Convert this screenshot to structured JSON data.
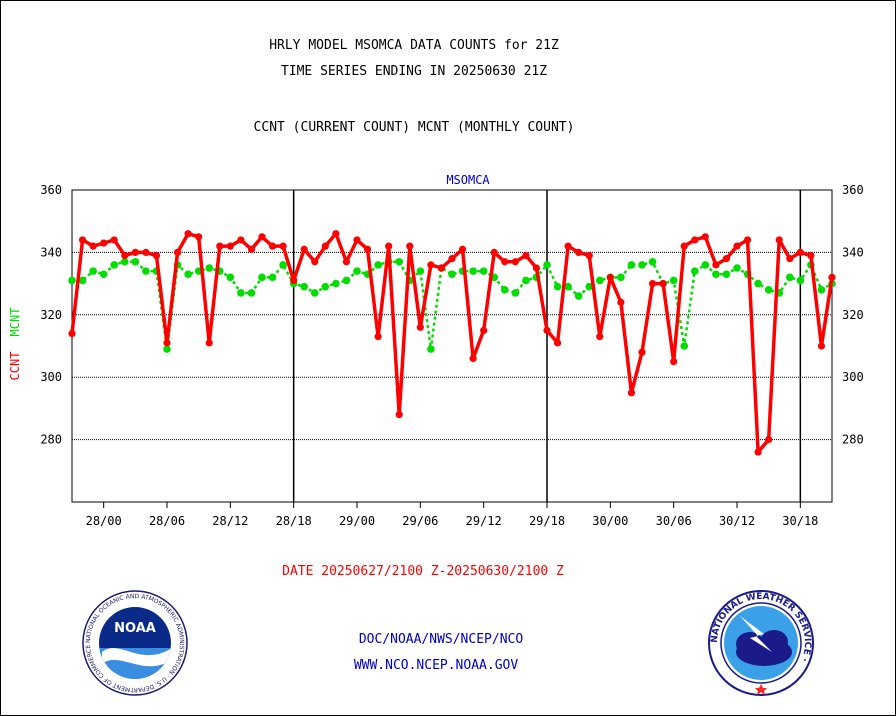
{
  "header": {
    "title_line1": "HRLY MODEL MSOMCA DATA COUNTS for 21Z",
    "title_line2": "TIME SERIES ENDING IN 20250630 21Z",
    "subtitle": "CCNT (CURRENT COUNT) MCNT (MONTHLY COUNT)"
  },
  "footer": {
    "date_range": "DATE 20250627/2100 Z-20250630/2100 Z",
    "link1": "DOC/NOAA/NWS/NCEP/NCO",
    "link2": "WWW.NCO.NCEP.NOAA.GOV"
  },
  "logos": {
    "noaa_text": "NOAA",
    "noaa_ring_text": "NATIONAL OCEANIC AND ATMOSPHERIC ADMINISTRATION · U.S. DEPARTMENT OF COMMERCE ·",
    "nws_ring_text": "NATIONAL WEATHER SERVICE ·"
  },
  "colors": {
    "ccnt": "#ff0000",
    "mcnt": "#00dd00",
    "station_label": "#0000cc",
    "date_label": "#ff0000",
    "links": "#0000cc"
  },
  "chart_data": {
    "type": "line",
    "title": "MSOMCA",
    "ylabel_parts": [
      "CCNT",
      "MCNT"
    ],
    "ylim": [
      260,
      360
    ],
    "yticks": [
      280,
      300,
      320,
      340,
      360
    ],
    "xlim_hours": [
      0,
      72
    ],
    "x_tick_labels": [
      "28/00",
      "28/06",
      "28/12",
      "28/18",
      "29/00",
      "29/06",
      "29/12",
      "29/18",
      "30/00",
      "30/06",
      "30/12",
      "30/18"
    ],
    "x_tick_hours": [
      3,
      9,
      15,
      21,
      27,
      33,
      39,
      45,
      51,
      57,
      63,
      69
    ],
    "day_separators_hours": [
      21,
      45,
      69
    ],
    "grid": true,
    "x": [
      "27/21",
      "27/22",
      "27/23",
      "28/00",
      "28/01",
      "28/02",
      "28/03",
      "28/04",
      "28/05",
      "28/06",
      "28/07",
      "28/08",
      "28/09",
      "28/10",
      "28/11",
      "28/12",
      "28/13",
      "28/14",
      "28/15",
      "28/16",
      "28/17",
      "28/18",
      "28/19",
      "28/20",
      "28/21",
      "28/22",
      "28/23",
      "29/00",
      "29/01",
      "29/02",
      "29/03",
      "29/04",
      "29/05",
      "29/06",
      "29/07",
      "29/08",
      "29/09",
      "29/10",
      "29/11",
      "29/12",
      "29/13",
      "29/14",
      "29/15",
      "29/16",
      "29/17",
      "29/18",
      "29/19",
      "29/20",
      "29/21",
      "29/22",
      "29/23",
      "30/00",
      "30/01",
      "30/02",
      "30/03",
      "30/04",
      "30/05",
      "30/06",
      "30/07",
      "30/08",
      "30/09",
      "30/10",
      "30/11",
      "30/12",
      "30/13",
      "30/14",
      "30/15",
      "30/16",
      "30/17",
      "30/18",
      "30/19",
      "30/20",
      "30/21"
    ],
    "series": [
      {
        "name": "CCNT",
        "values": [
          314,
          344,
          342,
          343,
          344,
          339,
          340,
          340,
          339,
          311,
          340,
          346,
          345,
          311,
          342,
          342,
          344,
          341,
          345,
          342,
          342,
          331,
          341,
          337,
          342,
          346,
          337,
          344,
          341,
          313,
          342,
          288,
          342,
          316,
          336,
          335,
          338,
          341,
          306,
          315,
          340,
          337,
          337,
          339,
          335,
          315,
          311,
          342,
          340,
          339,
          313,
          332,
          324,
          295,
          308,
          330,
          330,
          305,
          342,
          344,
          345,
          336,
          338,
          342,
          344,
          276,
          280,
          344,
          338,
          340,
          339,
          310,
          332
        ]
      },
      {
        "name": "MCNT",
        "values": [
          331,
          331,
          334,
          333,
          336,
          337,
          337,
          334,
          334,
          309,
          336,
          333,
          334,
          335,
          334,
          332,
          327,
          327,
          332,
          332,
          336,
          330,
          329,
          327,
          329,
          330,
          331,
          334,
          333,
          336,
          337,
          337,
          331,
          334,
          309,
          335,
          333,
          334,
          334,
          334,
          332,
          328,
          327,
          331,
          332,
          336,
          329,
          329,
          326,
          329,
          331,
          332,
          332,
          336,
          336,
          337,
          330,
          331,
          310,
          334,
          336,
          333,
          333,
          335,
          333,
          330,
          328,
          327,
          332,
          331,
          336,
          328,
          330
        ]
      }
    ]
  }
}
